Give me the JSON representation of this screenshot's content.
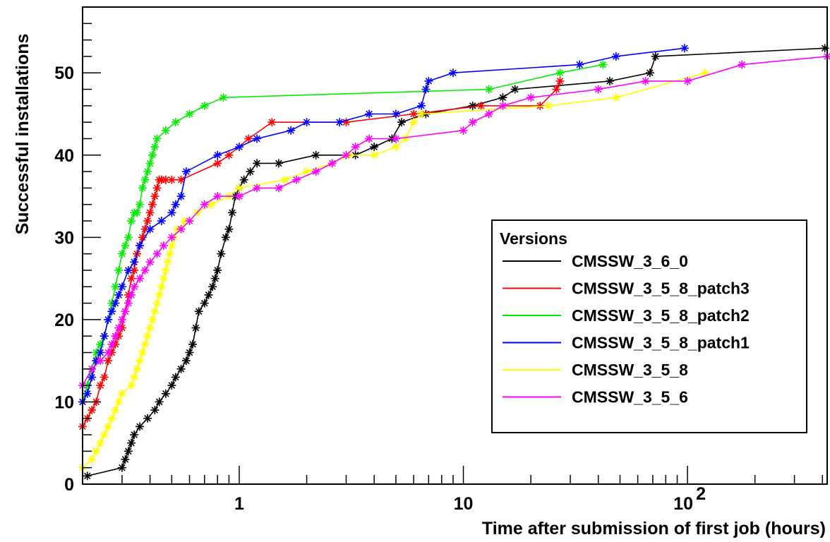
{
  "chart_data": {
    "type": "line",
    "title": "",
    "xlabel": "Time after submission of first job (hours)",
    "ylabel": "Successful installations",
    "x_scale": "log",
    "xlim": [
      0.2,
      420
    ],
    "ylim": [
      0,
      58
    ],
    "x_ticks": [
      {
        "value": 1,
        "label": "1",
        "exp": ""
      },
      {
        "value": 10,
        "label": "10",
        "exp": ""
      },
      {
        "value": 100,
        "label": "10",
        "exp": "2"
      }
    ],
    "y_ticks": [
      0,
      10,
      20,
      30,
      40,
      50
    ],
    "grid": false,
    "legend": {
      "title": "Versions",
      "position": "lower-right"
    },
    "series": [
      {
        "name": "CMSSW_3_6_0",
        "color": "#000000",
        "x": [
          0.21,
          0.3,
          0.31,
          0.32,
          0.33,
          0.34,
          0.36,
          0.39,
          0.42,
          0.44,
          0.47,
          0.5,
          0.52,
          0.55,
          0.58,
          0.6,
          0.62,
          0.64,
          0.66,
          0.7,
          0.73,
          0.76,
          0.78,
          0.8,
          0.83,
          0.87,
          0.9,
          0.93,
          0.96,
          1.0,
          1.05,
          1.12,
          1.2,
          1.5,
          2.2,
          3.3,
          4.0,
          4.8,
          5.3,
          6.8,
          11,
          15,
          17,
          45,
          68,
          72,
          410
        ],
        "y": [
          1,
          2,
          3,
          4,
          5,
          6,
          7,
          8,
          9,
          10,
          11,
          12,
          13,
          14,
          15,
          16,
          17,
          19,
          21,
          22,
          23,
          24,
          25,
          26,
          28,
          30,
          31,
          33,
          35,
          36,
          37,
          38,
          39,
          39,
          40,
          40,
          41,
          42,
          44,
          45,
          46,
          47,
          48,
          49,
          50,
          52,
          53
        ]
      },
      {
        "name": "CMSSW_3_5_8_patch3",
        "color": "#ff0000",
        "x": [
          0.2,
          0.21,
          0.22,
          0.23,
          0.24,
          0.25,
          0.26,
          0.27,
          0.28,
          0.29,
          0.3,
          0.31,
          0.32,
          0.33,
          0.34,
          0.35,
          0.36,
          0.37,
          0.38,
          0.39,
          0.4,
          0.41,
          0.42,
          0.43,
          0.44,
          0.45,
          0.47,
          0.5,
          0.55,
          0.8,
          0.9,
          1.1,
          1.4,
          3.0,
          6.0,
          12,
          22,
          26,
          27
        ],
        "y": [
          7,
          8,
          9,
          10,
          12,
          13,
          15,
          16,
          17,
          18,
          19,
          21,
          23,
          25,
          26,
          28,
          29,
          30,
          31,
          32,
          33,
          34,
          35,
          36,
          37,
          37,
          37,
          37,
          37,
          39,
          40,
          42,
          44,
          44,
          45,
          46,
          46,
          48,
          49
        ]
      },
      {
        "name": "CMSSW_3_5_8_patch2",
        "color": "#00ee00",
        "x": [
          0.2,
          0.21,
          0.22,
          0.23,
          0.24,
          0.25,
          0.26,
          0.27,
          0.28,
          0.29,
          0.3,
          0.31,
          0.32,
          0.33,
          0.34,
          0.35,
          0.36,
          0.37,
          0.38,
          0.39,
          0.4,
          0.41,
          0.42,
          0.43,
          0.47,
          0.52,
          0.6,
          0.7,
          0.85,
          13,
          27,
          42
        ],
        "y": [
          10,
          12,
          14,
          16,
          17,
          18,
          20,
          22,
          24,
          26,
          28,
          29,
          30,
          32,
          33,
          33,
          34,
          36,
          37,
          38,
          39,
          40,
          41,
          42,
          43,
          44,
          45,
          46,
          47,
          48,
          50,
          51
        ]
      },
      {
        "name": "CMSSW_3_5_8_patch1",
        "color": "#0000ff",
        "x": [
          0.2,
          0.21,
          0.22,
          0.23,
          0.24,
          0.25,
          0.26,
          0.27,
          0.28,
          0.29,
          0.3,
          0.32,
          0.34,
          0.36,
          0.4,
          0.45,
          0.5,
          0.52,
          0.55,
          0.58,
          0.8,
          1.0,
          1.2,
          1.7,
          2.0,
          2.8,
          3.8,
          5.0,
          6.5,
          6.8,
          7.0,
          9.0,
          33,
          48,
          97
        ],
        "y": [
          10,
          11,
          13,
          15,
          16,
          18,
          20,
          21,
          22,
          23,
          24,
          26,
          27,
          29,
          31,
          32,
          33,
          34,
          35,
          38,
          40,
          41,
          42,
          43,
          44,
          44,
          45,
          45,
          46,
          48,
          49,
          50,
          51,
          52,
          53
        ]
      },
      {
        "name": "CMSSW_3_5_8",
        "color": "#ffff00",
        "x": [
          0.2,
          0.22,
          0.23,
          0.24,
          0.25,
          0.26,
          0.27,
          0.28,
          0.29,
          0.3,
          0.33,
          0.34,
          0.35,
          0.36,
          0.37,
          0.38,
          0.39,
          0.4,
          0.41,
          0.42,
          0.43,
          0.44,
          0.45,
          0.46,
          0.47,
          0.48,
          0.49,
          0.5,
          0.51,
          0.53,
          0.55,
          0.57,
          0.6,
          0.65,
          0.75,
          0.9,
          1.0,
          1.6,
          2.0,
          2.6,
          3.1,
          4.0,
          5.0,
          5.5,
          6.0,
          6.5,
          24,
          48,
          120
        ],
        "y": [
          2,
          3,
          4,
          5,
          6,
          7,
          8,
          9,
          10,
          11,
          12,
          13,
          14,
          15,
          16,
          17,
          18,
          19,
          20,
          21,
          22,
          23,
          24,
          25,
          26,
          27,
          28,
          29,
          30,
          31,
          31,
          32,
          32,
          33,
          34,
          35,
          36,
          37,
          38,
          39,
          40,
          40,
          41,
          42,
          44,
          45,
          46,
          47,
          50
        ]
      },
      {
        "name": "CMSSW_3_5_6",
        "color": "#ff00ff",
        "x": [
          0.2,
          0.22,
          0.24,
          0.26,
          0.27,
          0.28,
          0.29,
          0.3,
          0.31,
          0.32,
          0.33,
          0.34,
          0.36,
          0.38,
          0.4,
          0.43,
          0.46,
          0.5,
          0.55,
          0.6,
          0.7,
          0.8,
          1.0,
          1.2,
          1.5,
          1.8,
          2.2,
          2.6,
          3.0,
          3.3,
          3.8,
          5.0,
          10,
          11,
          13,
          15,
          20,
          40,
          65,
          100,
          175,
          420
        ],
        "y": [
          12,
          14,
          15,
          16,
          17,
          18,
          19,
          20,
          21,
          22,
          23,
          24,
          25,
          26,
          27,
          28,
          29,
          30,
          31,
          32,
          34,
          35,
          35,
          36,
          36,
          37,
          38,
          39,
          40,
          41,
          42,
          42,
          43,
          44,
          45,
          46,
          47,
          48,
          49,
          49,
          51,
          52
        ]
      }
    ]
  }
}
